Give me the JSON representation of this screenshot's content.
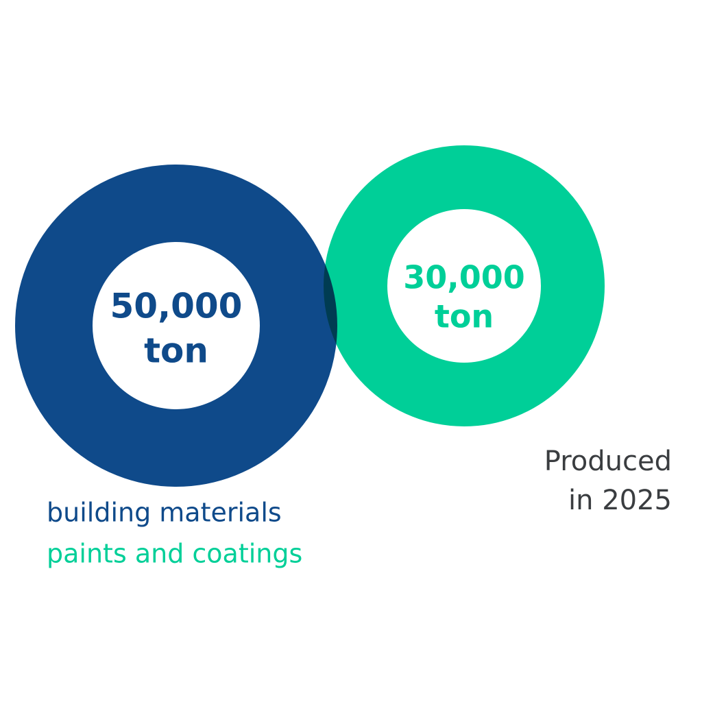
{
  "items": [
    {
      "value": "50,000",
      "unit": "ton",
      "label": "building materials",
      "color": "#0f4a8a"
    },
    {
      "value": "30,000",
      "unit": "ton",
      "label": "paints and coatings",
      "color": "#00cf98"
    }
  ],
  "note": [
    "Produced",
    "in 2025"
  ],
  "note_color": "#3a3d40"
}
